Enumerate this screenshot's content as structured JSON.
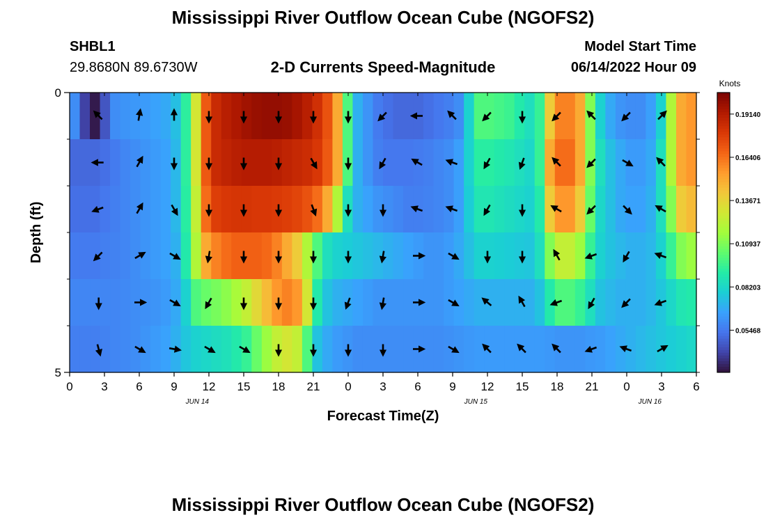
{
  "page": {
    "title": "Mississippi River Outflow Ocean Cube (NGOFS2)",
    "station_id": "SHBL1",
    "station_coords": "29.8680N  89.6730W",
    "subtitle": "2-D Currents Speed-Magnitude",
    "model_start_label": "Model Start Time",
    "model_start_value": "06/14/2022 Hour 09",
    "footer_title": "Mississippi River Outflow Ocean Cube (NGOFS2)"
  },
  "chart_data": {
    "type": "heatmap",
    "title": "2-D Currents Speed-Magnitude",
    "xlabel": "Forecast Time(Z)",
    "ylabel": "Depth (ft)",
    "x_ticks": [
      "0",
      "3",
      "6",
      "9",
      "12",
      "15",
      "18",
      "21",
      "0",
      "3",
      "6",
      "9",
      "12",
      "15",
      "18",
      "21",
      "0",
      "3",
      "6"
    ],
    "x_hours": [
      0,
      3,
      6,
      9,
      12,
      15,
      18,
      21,
      24,
      27,
      30,
      33,
      36,
      39,
      42,
      45,
      48,
      51,
      54
    ],
    "x_range_hours": [
      0,
      54
    ],
    "date_labels": [
      {
        "label": "JUN 14",
        "hour": 11
      },
      {
        "label": "JUN 15",
        "hour": 35
      },
      {
        "label": "JUN 16",
        "hour": 50
      }
    ],
    "y_ticks": [
      "0",
      "5"
    ],
    "y_range": [
      0,
      5
    ],
    "depth_layers": [
      0.25,
      1.0,
      2.0,
      3.0,
      4.0,
      4.75
    ],
    "colorbar": {
      "title": "Knots",
      "ticks": [
        "0.19140",
        "0.16406",
        "0.13671",
        "0.10937",
        "0.08203",
        "0.05468"
      ],
      "tick_values": [
        0.1914,
        0.16406,
        0.13671,
        0.10937,
        0.08203,
        0.05468
      ],
      "range": [
        0.028,
        0.205
      ],
      "colors": [
        "#30123b",
        "#4145ab",
        "#4675ed",
        "#39a2fc",
        "#1bcfd4",
        "#24eca6",
        "#61fc6c",
        "#a4fc3b",
        "#d1e834",
        "#f3c63a",
        "#fe9b2d",
        "#f36315",
        "#d93806",
        "#b11901",
        "#7a0402"
      ]
    },
    "speed_rows": [
      [
        0.06,
        0.04,
        0.03,
        0.045,
        0.06,
        0.062,
        0.063,
        0.064,
        0.066,
        0.068,
        0.074,
        0.093,
        0.13,
        0.17,
        0.185,
        0.19,
        0.193,
        0.196,
        0.198,
        0.199,
        0.199,
        0.198,
        0.195,
        0.19,
        0.183,
        0.172,
        0.15,
        0.1,
        0.07,
        0.062,
        0.055,
        0.052,
        0.05,
        0.05,
        0.05,
        0.052,
        0.054,
        0.056,
        0.06,
        0.08,
        0.1,
        0.1,
        0.098,
        0.096,
        0.09,
        0.085,
        0.095,
        0.14,
        0.16,
        0.16,
        0.15,
        0.11,
        0.08,
        0.068,
        0.062,
        0.06,
        0.06,
        0.065,
        0.08,
        0.12,
        0.15,
        0.155
      ],
      [
        0.05,
        0.05,
        0.05,
        0.052,
        0.055,
        0.058,
        0.06,
        0.062,
        0.064,
        0.066,
        0.072,
        0.093,
        0.13,
        0.17,
        0.185,
        0.188,
        0.19,
        0.191,
        0.191,
        0.191,
        0.19,
        0.188,
        0.186,
        0.184,
        0.18,
        0.17,
        0.15,
        0.1,
        0.07,
        0.062,
        0.056,
        0.054,
        0.054,
        0.054,
        0.055,
        0.056,
        0.058,
        0.06,
        0.065,
        0.08,
        0.092,
        0.092,
        0.09,
        0.088,
        0.085,
        0.082,
        0.095,
        0.15,
        0.165,
        0.165,
        0.15,
        0.11,
        0.085,
        0.074,
        0.068,
        0.064,
        0.064,
        0.068,
        0.085,
        0.12,
        0.15,
        0.155
      ],
      [
        0.052,
        0.052,
        0.052,
        0.054,
        0.056,
        0.058,
        0.06,
        0.062,
        0.064,
        0.066,
        0.072,
        0.092,
        0.125,
        0.165,
        0.178,
        0.18,
        0.181,
        0.181,
        0.18,
        0.18,
        0.179,
        0.178,
        0.176,
        0.172,
        0.165,
        0.15,
        0.12,
        0.085,
        0.07,
        0.066,
        0.062,
        0.06,
        0.058,
        0.056,
        0.056,
        0.057,
        0.058,
        0.06,
        0.065,
        0.078,
        0.088,
        0.088,
        0.086,
        0.084,
        0.082,
        0.08,
        0.09,
        0.14,
        0.155,
        0.155,
        0.14,
        0.105,
        0.082,
        0.074,
        0.068,
        0.066,
        0.066,
        0.07,
        0.085,
        0.11,
        0.14,
        0.145
      ],
      [
        0.055,
        0.055,
        0.055,
        0.056,
        0.057,
        0.058,
        0.06,
        0.062,
        0.064,
        0.066,
        0.07,
        0.09,
        0.12,
        0.15,
        0.16,
        0.165,
        0.168,
        0.168,
        0.168,
        0.166,
        0.16,
        0.15,
        0.14,
        0.12,
        0.1,
        0.085,
        0.08,
        0.078,
        0.076,
        0.074,
        0.072,
        0.07,
        0.068,
        0.066,
        0.064,
        0.062,
        0.062,
        0.064,
        0.068,
        0.074,
        0.08,
        0.08,
        0.079,
        0.078,
        0.077,
        0.076,
        0.085,
        0.11,
        0.125,
        0.125,
        0.115,
        0.095,
        0.08,
        0.075,
        0.072,
        0.07,
        0.07,
        0.072,
        0.08,
        0.095,
        0.11,
        0.115
      ],
      [
        0.058,
        0.058,
        0.058,
        0.058,
        0.058,
        0.059,
        0.06,
        0.061,
        0.062,
        0.064,
        0.068,
        0.08,
        0.1,
        0.105,
        0.108,
        0.112,
        0.118,
        0.125,
        0.135,
        0.145,
        0.155,
        0.16,
        0.155,
        0.13,
        0.09,
        0.075,
        0.07,
        0.068,
        0.066,
        0.064,
        0.062,
        0.062,
        0.062,
        0.062,
        0.062,
        0.062,
        0.062,
        0.064,
        0.066,
        0.068,
        0.07,
        0.07,
        0.07,
        0.07,
        0.07,
        0.07,
        0.075,
        0.09,
        0.1,
        0.1,
        0.095,
        0.085,
        0.075,
        0.072,
        0.07,
        0.07,
        0.07,
        0.072,
        0.076,
        0.082,
        0.088,
        0.09
      ],
      [
        0.056,
        0.056,
        0.056,
        0.057,
        0.058,
        0.059,
        0.06,
        0.062,
        0.064,
        0.066,
        0.07,
        0.076,
        0.08,
        0.082,
        0.084,
        0.086,
        0.09,
        0.095,
        0.105,
        0.115,
        0.125,
        0.13,
        0.125,
        0.1,
        0.075,
        0.068,
        0.064,
        0.062,
        0.06,
        0.06,
        0.06,
        0.06,
        0.06,
        0.06,
        0.06,
        0.06,
        0.06,
        0.061,
        0.062,
        0.063,
        0.064,
        0.064,
        0.064,
        0.064,
        0.064,
        0.064,
        0.064,
        0.063,
        0.062,
        0.062,
        0.062,
        0.063,
        0.064,
        0.066,
        0.068,
        0.07,
        0.072,
        0.074,
        0.076,
        0.078,
        0.08,
        0.082
      ]
    ],
    "arrow_hours": [
      2.5,
      6,
      9,
      12,
      15,
      18,
      21,
      24,
      27,
      30,
      33,
      36,
      39,
      42,
      45,
      48,
      51
    ],
    "arrow_directions_deg": [
      [
        135,
        80,
        90,
        270,
        270,
        270,
        270,
        270,
        225,
        180,
        135,
        225,
        270,
        225,
        135,
        225,
        45
      ],
      [
        180,
        60,
        270,
        270,
        270,
        270,
        300,
        270,
        240,
        150,
        160,
        240,
        250,
        135,
        225,
        330,
        135
      ],
      [
        200,
        60,
        300,
        270,
        270,
        270,
        290,
        270,
        270,
        160,
        160,
        240,
        270,
        150,
        225,
        315,
        150
      ],
      [
        225,
        30,
        330,
        260,
        270,
        270,
        270,
        270,
        260,
        0,
        330,
        270,
        270,
        120,
        200,
        240,
        160
      ],
      [
        270,
        0,
        330,
        240,
        270,
        270,
        270,
        250,
        260,
        0,
        330,
        140,
        120,
        200,
        240,
        225,
        200
      ],
      [
        285,
        330,
        350,
        330,
        330,
        270,
        270,
        270,
        270,
        0,
        330,
        135,
        135,
        135,
        200,
        160,
        30
      ]
    ]
  }
}
